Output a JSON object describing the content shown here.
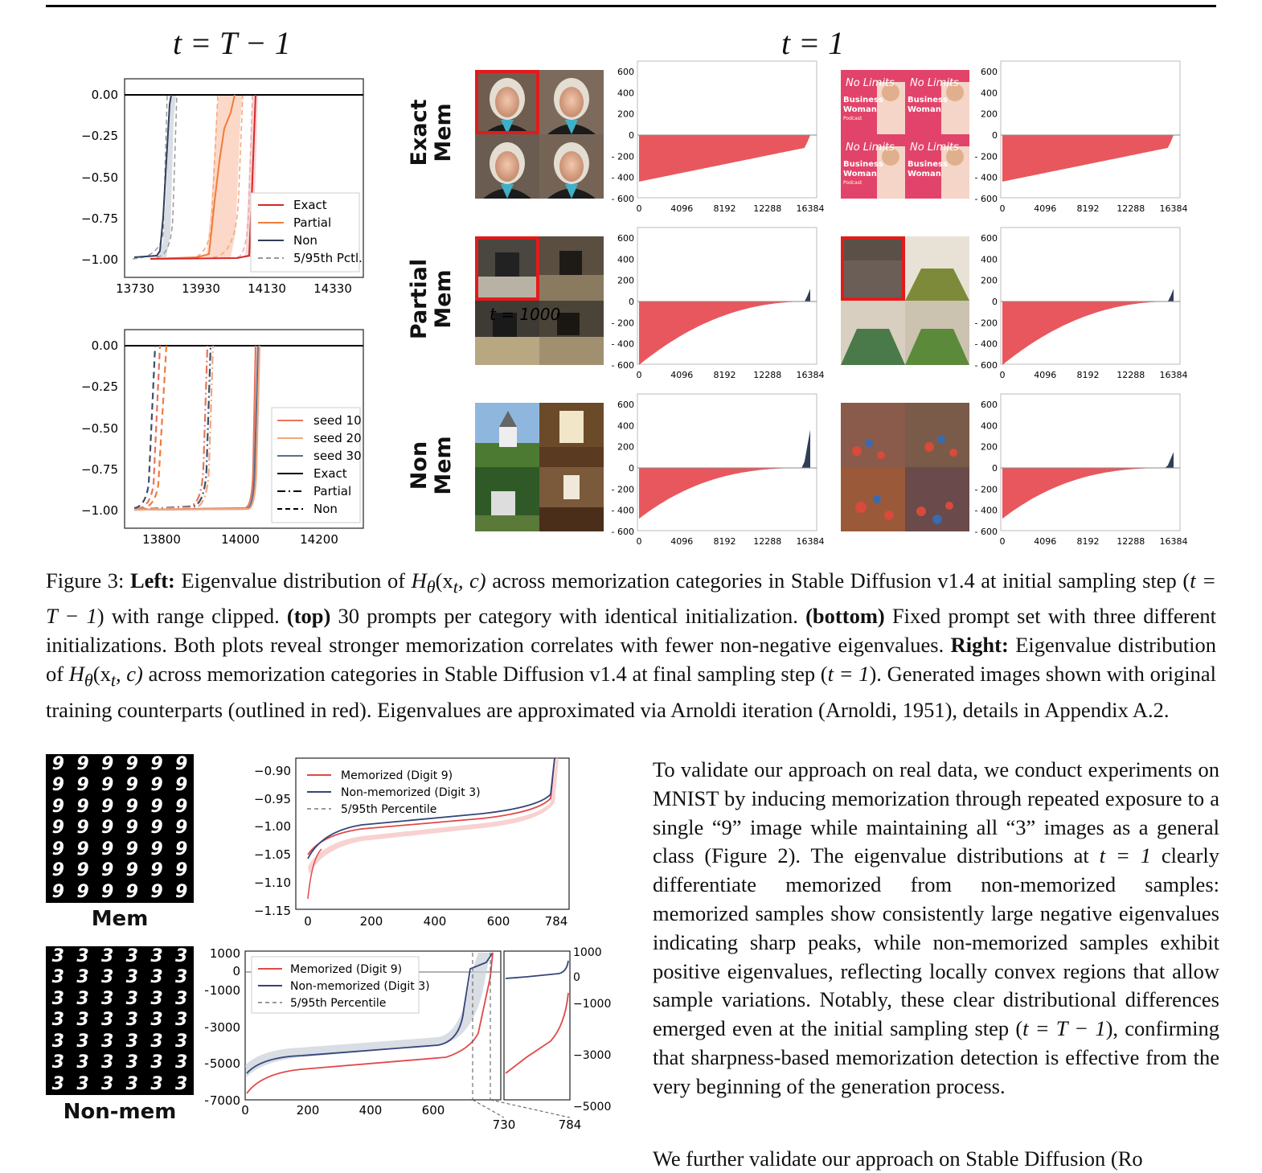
{
  "left_panel": {
    "title": "t = T − 1",
    "top_chart": {
      "ylabels": [
        "0.00",
        "−0.25",
        "−0.50",
        "−0.75",
        "−1.00"
      ],
      "xlabels": [
        "13730",
        "13930",
        "14130",
        "14330"
      ],
      "legend": [
        "Exact",
        "Partial",
        "Non",
        "5/95th Pctl."
      ]
    },
    "bottom_chart": {
      "ylabels": [
        "0.00",
        "−0.25",
        "−0.50",
        "−0.75",
        "−1.00"
      ],
      "xlabels": [
        "13800",
        "14000",
        "14200"
      ],
      "legend": [
        "seed 10",
        "seed 20",
        "seed 30",
        "Exact",
        "Partial",
        "Non"
      ]
    }
  },
  "right_panel": {
    "title": "t = 1",
    "rows": [
      {
        "label_1": "Exact",
        "label_2": "Mem"
      },
      {
        "label_1": "Partial",
        "label_2": "Mem"
      },
      {
        "label_1": "Non",
        "label_2": "Mem"
      }
    ],
    "eig_ylabels": [
      "600",
      "400",
      "200",
      "0",
      "- 200",
      "- 400",
      "- 600"
    ],
    "eig_xlabels": [
      "0",
      "4096",
      "8192",
      "12288",
      "16384"
    ],
    "podcast_text": {
      "line1": "No Limits",
      "line2": "Business",
      "line3": "Woman",
      "line4": "Podcast"
    },
    "overlay_text": "t = 1000"
  },
  "caption": {
    "fig": "Figure 3:",
    "left_bold": "Left:",
    "p1": " Eigenvalue distribution of ",
    "math1": "H",
    "math1_sub": "θ",
    "math1_args": "(x",
    "math1_args_sub": "t",
    "math1_args_end": ", c)",
    "p2": " across memorization categories in Stable Diffusion v1.4 at initial sampling step (",
    "tt1": "t = T − 1",
    "p3": ") with range clipped. ",
    "top_bold": "(top)",
    "p4": " 30 prompts per category with identical initialization. ",
    "bottom_bold": "(bottom)",
    "p5": " Fixed prompt set with three different initializations. Both plots reveal stronger memorization correlates with fewer non-negative eigenvalues. ",
    "right_bold": "Right:",
    "p6": " Eigenvalue distribution of ",
    "p7": " across memorization categories in Stable Diffusion v1.4 at final sampling step (",
    "tt2": "t = 1",
    "p8": "). Generated images shown with original training counterparts (outlined in red). Eigenvalues are approximated via Arnoldi iteration (Arnoldi, 1951), details in Appendix A.2."
  },
  "mnist": {
    "mem_label": "Mem",
    "nonmem_label": "Non-mem",
    "digits_mem": "9",
    "digits_nonmem": "3",
    "top_chart": {
      "ylabels": [
        "−0.90",
        "−0.95",
        "−1.00",
        "−1.05",
        "−1.10",
        "−1.15"
      ],
      "xlabels": [
        "0",
        "200",
        "400",
        "600",
        "784"
      ],
      "legend": [
        "Memorized (Digit 9)",
        "Non-memorized (Digit 3)",
        "5/95th Percentile"
      ]
    },
    "bottom_chart": {
      "ylabels": [
        "1000",
        "0",
        "−1000",
        "−3000",
        "−5000",
        "−7000"
      ],
      "xlabels": [
        "0",
        "200",
        "400",
        "600"
      ],
      "legend": [
        "Memorized (Digit 9)",
        "Non-memorized (Digit 3)",
        "5/95th Percentile"
      ],
      "inset_ylabels": [
        "1000",
        "0",
        "−1000",
        "−3000",
        "−5000"
      ],
      "inset_xlabels": [
        "730",
        "784"
      ]
    }
  },
  "body": {
    "p1": "To validate our approach on real data, we conduct experiments on MNIST by inducing memorization through repeated exposure to a single “9” image while maintaining all “3” images as a general class (Figure 2). The eigenvalue distributions at ",
    "t1": "t = 1",
    "p2": " clearly differentiate memorized from non-memorized samples: memorized samples show consistently large negative eigenvalues indicating sharp peaks, while non-memorized samples exhibit positive eigenvalues, reflecting locally convex regions that allow sample variations. Notably, these clear distributional differences emerged even at the initial sampling step (",
    "t2": "t = T − 1",
    "p3": "), confirming that sharpness-based memorization detection is effective from the very beginning of the generation process.",
    "cut": "We further validate our approach on Stable Diffusion (Ro"
  },
  "colors": {
    "exact": "#d62728",
    "partial": "#f07c3a",
    "non": "#2f3f5a",
    "bar": "#e8575d",
    "mem": "#e04848",
    "nonmem": "#34457a"
  }
}
